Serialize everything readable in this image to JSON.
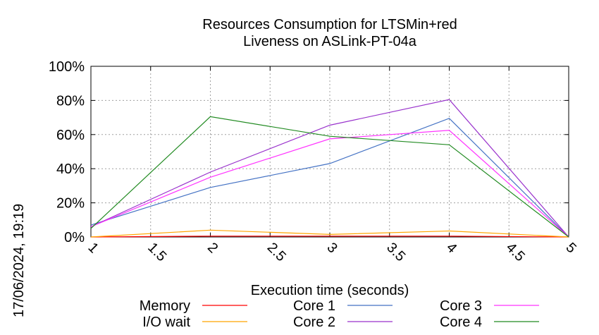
{
  "chart_data": {
    "type": "line",
    "title": "Resources Consumption for LTSMin+red",
    "subtitle": "Liveness on ASLink-PT-04a",
    "xlabel": "Execution time (seconds)",
    "ylabel": "",
    "timestamp": "17/06/2024, 19:19",
    "xlim": [
      1,
      5
    ],
    "ylim": [
      0,
      100
    ],
    "x_ticks": [
      "1",
      "1.5",
      "2",
      "2.5",
      "3",
      "3.5",
      "4",
      "4.5",
      "5"
    ],
    "y_ticks": [
      "0%",
      "20%",
      "40%",
      "60%",
      "80%",
      "100%"
    ],
    "grid": true,
    "legend_position": "bottom",
    "x": [
      1,
      2,
      3,
      4,
      5
    ],
    "series": [
      {
        "name": "Memory",
        "color": "#ff0000",
        "values": [
          0,
          0.5,
          0.5,
          0.5,
          0
        ]
      },
      {
        "name": "I/O wait",
        "color": "#ffa500",
        "values": [
          0,
          4,
          1.5,
          3.5,
          0
        ]
      },
      {
        "name": "Core 1",
        "color": "#4472c4",
        "values": [
          7,
          29,
          43,
          69.5,
          0
        ]
      },
      {
        "name": "Core 2",
        "color": "#9932cc",
        "values": [
          6,
          38,
          65.5,
          80.5,
          0
        ]
      },
      {
        "name": "Core 3",
        "color": "#ff33ff",
        "values": [
          6,
          35,
          57.5,
          62.5,
          0
        ]
      },
      {
        "name": "Core 4",
        "color": "#228b22",
        "values": [
          5,
          70.5,
          59,
          54,
          0
        ]
      }
    ]
  }
}
